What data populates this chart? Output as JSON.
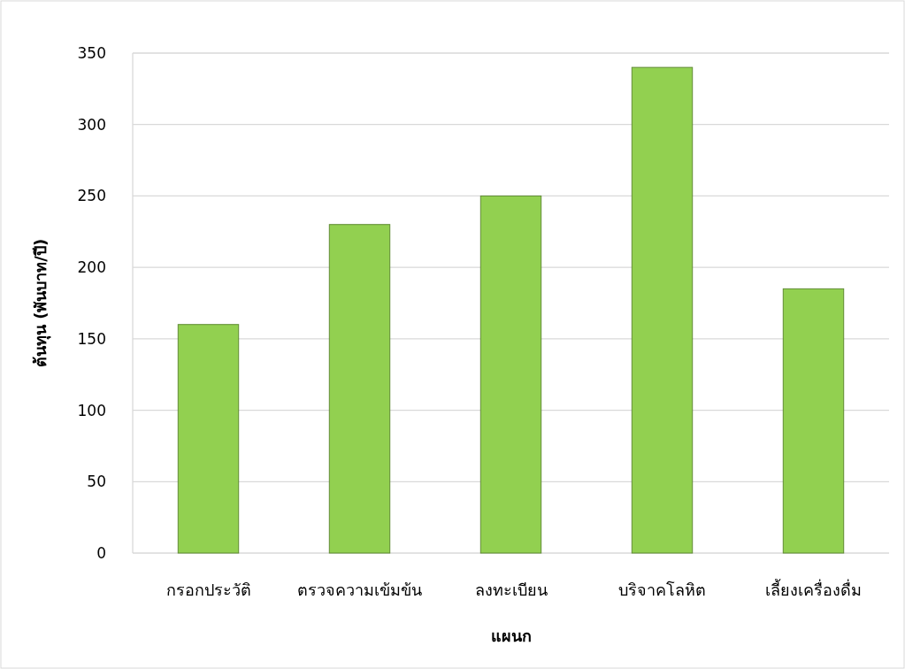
{
  "chart_data": {
    "type": "bar",
    "xlabel": "แผนก",
    "ylabel": "ต้นทุน (พันบาท/ปี)",
    "categories": [
      "กรอกประวัติ",
      "ตรวจความเข้มข้น",
      "ลงทะเบียน",
      "บริจาคโลหิต",
      "เลี้ยงเครื่องดื่ม"
    ],
    "values": [
      160,
      230,
      250,
      340,
      185
    ],
    "color": "#92d050",
    "ylim": [
      0,
      350
    ],
    "yticks": [
      0,
      50,
      100,
      150,
      200,
      250,
      300,
      350
    ],
    "grid": "y"
  }
}
